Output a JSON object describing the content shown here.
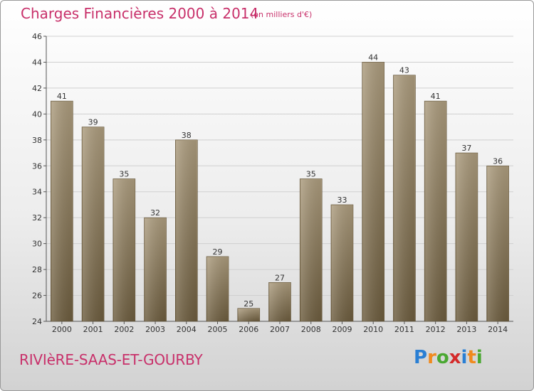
{
  "title": "Charges Financières 2000 à 2014",
  "subtitle": "(en milliers d'€)",
  "commune": "RIVIèRE-SAAS-ET-GOURBY",
  "logo": {
    "text": "Proxiti",
    "letters": [
      {
        "ch": "P",
        "color": "#2a7fd4"
      },
      {
        "ch": "r",
        "color": "#f08a1e"
      },
      {
        "ch": "o",
        "color": "#4aa832"
      },
      {
        "ch": "x",
        "color": "#d42a2a"
      },
      {
        "ch": "i",
        "color": "#2a7fd4"
      },
      {
        "ch": "t",
        "color": "#f08a1e"
      },
      {
        "ch": "i",
        "color": "#4aa832"
      }
    ]
  },
  "colors": {
    "title": "#c8306a",
    "bar_light": "#a8987a",
    "bar_dark": "#6e5e40",
    "grid": "#cfcfcf",
    "axis": "#555555"
  },
  "chart_data": {
    "type": "bar",
    "title": "Charges Financières 2000 à 2014",
    "subtitle": "(en milliers d'€)",
    "categories": [
      "2000",
      "2001",
      "2002",
      "2003",
      "2004",
      "2005",
      "2006",
      "2007",
      "2008",
      "2009",
      "2010",
      "2011",
      "2012",
      "2013",
      "2014"
    ],
    "values": [
      41,
      39,
      35,
      32,
      38,
      29,
      25,
      27,
      35,
      33,
      44,
      43,
      41,
      37,
      36
    ],
    "ylim": [
      24,
      46
    ],
    "yticks": [
      24,
      26,
      28,
      30,
      32,
      34,
      36,
      38,
      40,
      42,
      44,
      46
    ],
    "grid": true,
    "xlabel": "",
    "ylabel": ""
  }
}
